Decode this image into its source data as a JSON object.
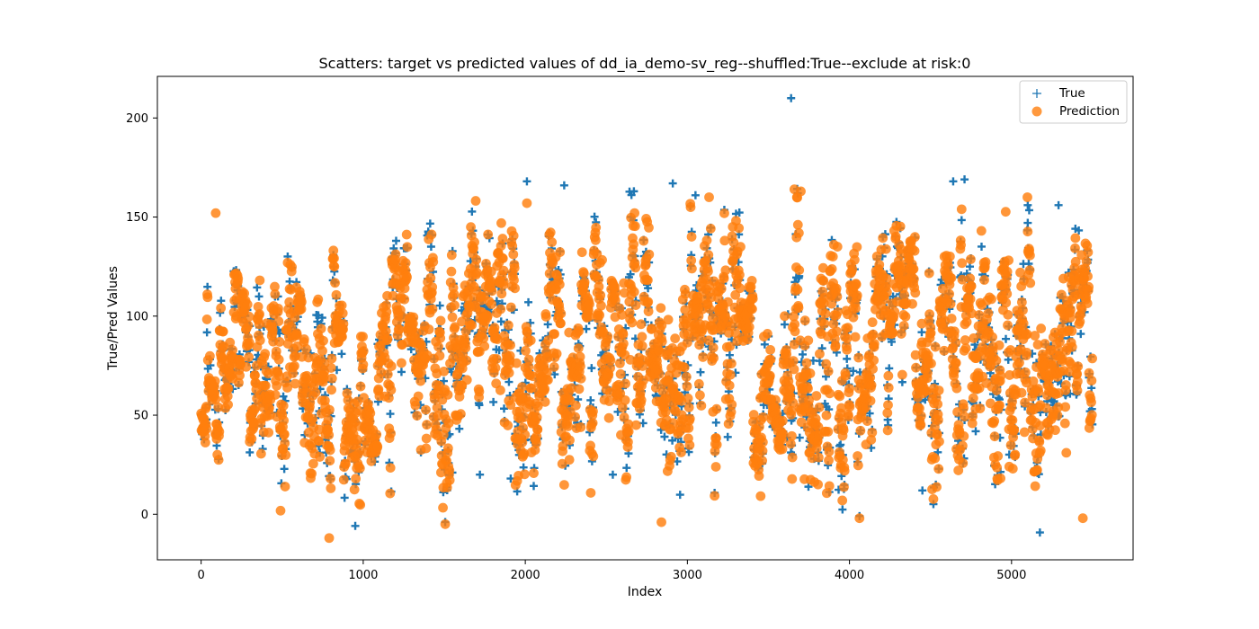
{
  "chart_data": {
    "type": "scatter",
    "title": "Scatters: target vs predicted values of dd_ia_demo-sv_reg--shuffled:True--exclude at risk:0",
    "xlabel": "Index",
    "ylabel": "True/Pred Values",
    "xlim": [
      -270,
      5750
    ],
    "ylim": [
      -23,
      221
    ],
    "xticks": [
      0,
      1000,
      2000,
      3000,
      4000,
      5000
    ],
    "yticks": [
      0,
      50,
      100,
      150,
      200
    ],
    "grid": false,
    "legend_position": "top-right",
    "legend": [
      {
        "label": "True",
        "marker": "plus",
        "color": "#1f77b4"
      },
      {
        "label": "Prediction",
        "marker": "circle",
        "color": "#ff7f0e"
      }
    ],
    "n_points": 5500,
    "series": [
      {
        "name": "True",
        "marker": "plus",
        "color": "#1f77b4",
        "notable_points": [
          {
            "x": 3640,
            "y": 210
          },
          {
            "x": 2010,
            "y": 168
          },
          {
            "x": 2240,
            "y": 166
          },
          {
            "x": 2670,
            "y": 163
          },
          {
            "x": 2910,
            "y": 167
          },
          {
            "x": 3050,
            "y": 161
          },
          {
            "x": 4640,
            "y": 168
          },
          {
            "x": 4710,
            "y": 169
          },
          {
            "x": 5100,
            "y": 156
          },
          {
            "x": 5290,
            "y": 156
          },
          {
            "x": 300,
            "y": 95
          },
          {
            "x": 380,
            "y": 33
          },
          {
            "x": 1550,
            "y": 21
          },
          {
            "x": 1720,
            "y": 20
          },
          {
            "x": 1910,
            "y": 18
          },
          {
            "x": 2540,
            "y": 20
          },
          {
            "x": 4450,
            "y": 12
          }
        ]
      },
      {
        "name": "Prediction",
        "marker": "circle",
        "color": "#ff7f0e",
        "y_range": [
          -12,
          164
        ],
        "notable_points": [
          {
            "x": 790,
            "y": -12
          },
          {
            "x": 3660,
            "y": 164
          },
          {
            "x": 3700,
            "y": 163
          },
          {
            "x": 2010,
            "y": 157
          },
          {
            "x": 5440,
            "y": -2
          },
          {
            "x": 2840,
            "y": -4
          },
          {
            "x": 90,
            "y": 152
          }
        ]
      }
    ]
  }
}
